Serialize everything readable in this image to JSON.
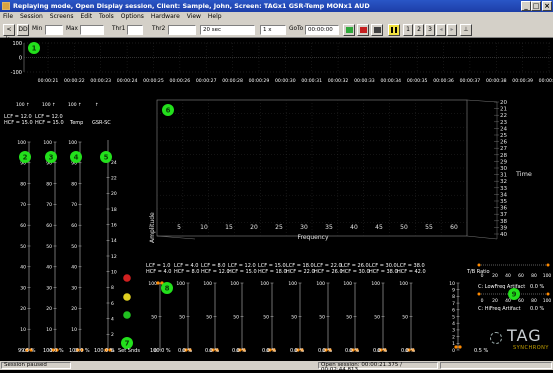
{
  "window": {
    "title": "Replaying mode, Open Display session, Client: Sample, John, Screen: TAGx1 GSR-Temp MONx1 AUD",
    "minimize": "_",
    "maximize": "□",
    "close": "×"
  },
  "menu": [
    "File",
    "Session",
    "Screens",
    "Edit",
    "Tools",
    "Options",
    "Hardware",
    "View",
    "Help"
  ],
  "toolbar": {
    "mode_btn": "< |>",
    "dd_btn": "DD",
    "min_label": "Min",
    "max_label": "Max",
    "thr1_label": "Thr1",
    "thr2_label": "Thr2",
    "time_window": "20 sec",
    "speed": "1 x",
    "goto_label": "GoTo",
    "goto_value": "00:00:00",
    "pages": [
      "1",
      "2",
      "3"
    ],
    "icon_colors": {
      "play": "#2ea83a",
      "record": "#c41f1f",
      "stop": "#404040",
      "pause": "#d9d000"
    }
  },
  "top_chart": {
    "badge": "1",
    "y_ticks": [
      "100",
      "0",
      "-100"
    ],
    "time_ticks": [
      "00:00:21",
      "00:00:22",
      "00:00:23",
      "00:00:24",
      "00:00:25",
      "00:00:26",
      "00:00:27",
      "00:00:28",
      "00:00:29",
      "00:00:30",
      "00:00:31",
      "00:00:32",
      "00:00:33",
      "00:00:34",
      "00:00:35",
      "00:00:36",
      "00:00:37",
      "00:00:38",
      "00:00:39",
      "00:00:40"
    ]
  },
  "left_gauges": {
    "headers": [
      {
        "lcf": "LCF = 12.0",
        "hcf": "HCF = 15.0"
      },
      {
        "lcf": "LCF = 12.0",
        "hcf": "HCF = 15.0"
      }
    ],
    "titles": [
      "",
      "",
      "Temp",
      "GSR-SC"
    ],
    "badges": [
      "2",
      "3",
      "4",
      "5"
    ],
    "scale": [
      "100",
      "90",
      "80",
      "70",
      "60",
      "50",
      "40",
      "30",
      "20",
      "10",
      "0"
    ],
    "gsr_scale": [
      "24",
      "22",
      "20",
      "18",
      "16",
      "14",
      "12",
      "10",
      "8",
      "6",
      "4",
      "2",
      "0"
    ],
    "values": [
      "99.5 %",
      "100.0 %",
      "100.0 %",
      "100.0 %"
    ],
    "levels": [
      0.995,
      1.0,
      1.0,
      1.0
    ]
  },
  "set_snds": {
    "label": "Set Snds",
    "badge": "7",
    "light_colors": [
      "#d02020",
      "#e0d020",
      "#20c020"
    ]
  },
  "spectrum": {
    "badge": "6",
    "ylabel": "Amplitude",
    "xlabel": "Frequency",
    "x_ticks": [
      "5",
      "10",
      "15",
      "20",
      "25",
      "30",
      "35",
      "40",
      "45",
      "50",
      "55",
      "60"
    ],
    "time_label": "Time",
    "time_ticks": [
      "20",
      "21",
      "22",
      "23",
      "24",
      "25",
      "26",
      "27",
      "28",
      "29",
      "30",
      "31",
      "32",
      "33",
      "34",
      "35",
      "36",
      "37",
      "38",
      "39",
      "40"
    ]
  },
  "band_gauges": {
    "badge": "8",
    "bands": [
      {
        "lcf": "LCF = 1.0",
        "hcf": "HCF = 4.0",
        "value": "100.0 %"
      },
      {
        "lcf": "LCF = 4.0",
        "hcf": "HCF = 8.0",
        "value": "0.0 %"
      },
      {
        "lcf": "LCF = 8.0",
        "hcf": "HCF = 12.0",
        "value": "0.0 %"
      },
      {
        "lcf": "LCF = 12.0",
        "hcf": "HCF = 15.0",
        "value": "0.0 %"
      },
      {
        "lcf": "LCF = 15.0",
        "hcf": "HCF = 18.0",
        "value": "0.0 %"
      },
      {
        "lcf": "LCF = 18.0",
        "hcf": "HCF = 22.0",
        "value": "0.0 %"
      },
      {
        "lcf": "LCF = 22.0",
        "hcf": "HCF = 26.0",
        "value": "0.0 %"
      },
      {
        "lcf": "LCF = 26.0",
        "hcf": "HCF = 30.0",
        "value": "0.0 %"
      },
      {
        "lcf": "LCF = 30.0",
        "hcf": "HCF = 38.0",
        "value": "0.0 %"
      },
      {
        "lcf": "LCF = 38.0",
        "hcf": "HCF = 42.0",
        "value": "0.0 %"
      }
    ],
    "ratio_label": "T/B Ratio",
    "ratio_value": "0.5 %",
    "ratio_scale": [
      "10",
      "9",
      "8",
      "7",
      "6",
      "5",
      "4",
      "3",
      "2",
      "1",
      "0"
    ],
    "scale": [
      "100",
      "50",
      "0"
    ]
  },
  "artifacts": {
    "badge": "9",
    "scale": [
      "0",
      "20",
      "40",
      "60",
      "80",
      "100"
    ],
    "low": {
      "label": "C: LowFreq Artifact",
      "value": "0.0 %"
    },
    "high": {
      "label": "C: HiFreq Artifact",
      "value": "0.0 %"
    }
  },
  "logo": {
    "main": "TAG",
    "sub": "SYNCHRONY"
  },
  "status": {
    "left": "Session paused",
    "right": "Open session: 00:00:21.375 / 00:02:44.813"
  }
}
